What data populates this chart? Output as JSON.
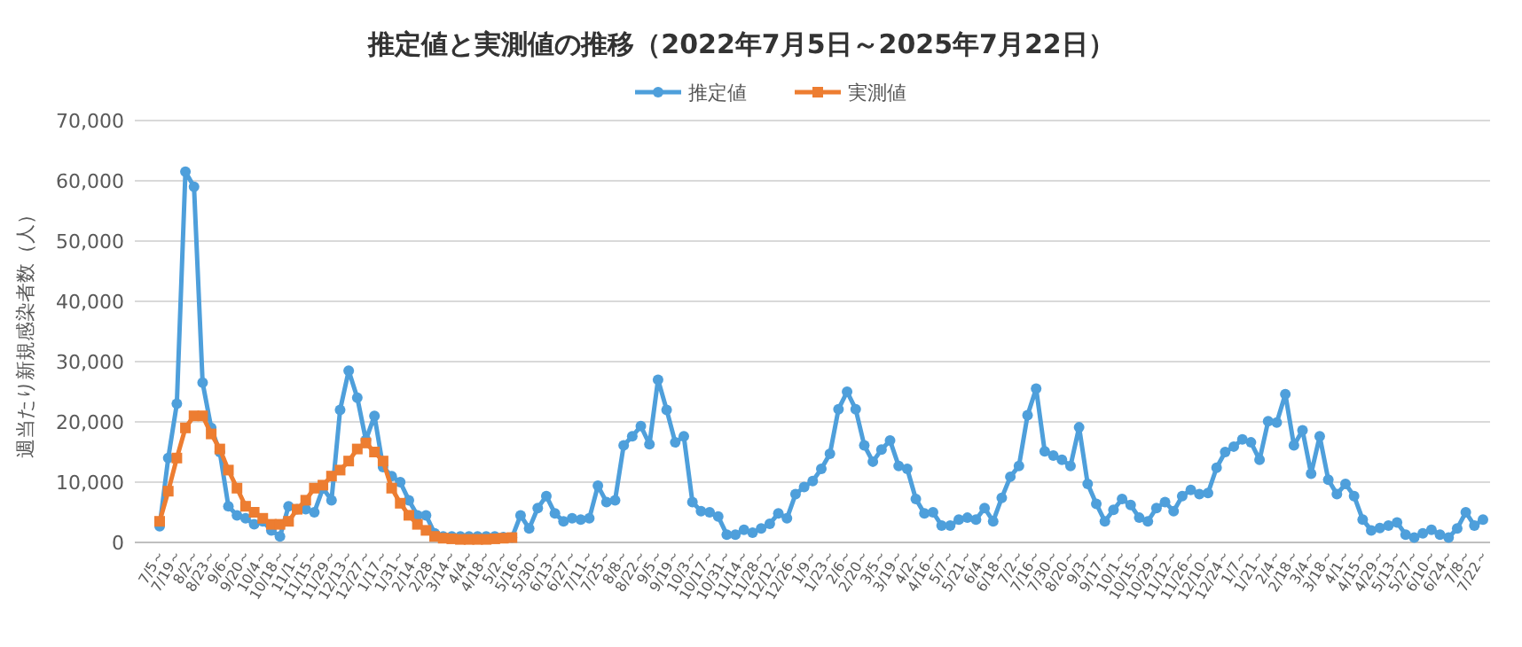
{
  "chart_data": {
    "type": "line",
    "title": "推定値と実測値の推移（2022年7月5日～2025年7月22日）",
    "ylabel": "週当たり新規感染者数（人）",
    "categories": [
      "7/5～",
      null,
      "7/19～",
      null,
      "8/2～",
      null,
      "8/23～",
      null,
      "9/6～",
      null,
      "9/20～",
      null,
      "10/4～",
      null,
      "10/18～",
      null,
      "11/1～",
      null,
      "11/15～",
      null,
      "11/29～",
      null,
      "12/13～",
      null,
      "12/27～",
      null,
      "1/17～",
      null,
      "1/31～",
      null,
      "2/14～",
      null,
      "2/28～",
      null,
      "3/14～",
      null,
      "4/4～",
      null,
      "4/18～",
      null,
      "5/2～",
      null,
      "5/16～",
      null,
      "5/30～",
      null,
      "6/13～",
      null,
      "6/27～",
      null,
      "7/11～",
      null,
      "7/25～",
      null,
      "8/8～",
      null,
      "8/22～",
      null,
      "9/5～",
      null,
      "9/19～",
      null,
      "10/3～",
      null,
      "10/17～",
      null,
      "10/31～",
      null,
      "11/14～",
      null,
      "11/28～",
      null,
      "12/12～",
      null,
      "12/26～",
      null,
      "1/9～",
      null,
      "1/23～",
      null,
      "2/6～",
      null,
      "2/20～",
      null,
      "3/5～",
      null,
      "3/19～",
      null,
      "4/2～",
      null,
      "4/16～",
      null,
      "5/7～",
      null,
      "5/21～",
      null,
      "6/4～",
      null,
      "6/18～",
      null,
      "7/2～",
      null,
      "7/16～",
      null,
      "7/30～",
      null,
      "8/20～",
      null,
      "9/3～",
      null,
      "9/17～",
      null,
      "10/1～",
      null,
      "10/15～",
      null,
      "10/29～",
      null,
      "11/12～",
      null,
      "11/26～",
      null,
      "12/10～",
      null,
      "12/24～",
      null,
      "1/7～",
      null,
      "1/21～",
      null,
      "2/4～",
      null,
      "2/18～",
      null,
      "3/4～",
      null,
      "3/18～",
      null,
      "4/1～",
      null,
      "4/15～",
      null,
      "4/29～",
      null,
      "5/13～",
      null,
      "5/27～",
      null,
      "6/10～",
      null,
      "6/24～",
      null,
      "7/8～",
      null,
      "7/22～"
    ],
    "series": [
      {
        "name": "推定値",
        "color": "#4e9fdb",
        "marker": "circle",
        "values": [
          2700,
          14000,
          23000,
          61500,
          59000,
          26500,
          19000,
          15000,
          6000,
          4500,
          4000,
          3000,
          3500,
          2000,
          1000,
          6000,
          5500,
          5500,
          5000,
          9000,
          7000,
          22000,
          28500,
          24000,
          17000,
          21000,
          12500,
          11000,
          10000,
          7000,
          4500,
          4500,
          1500,
          1000,
          1000,
          1000,
          1000,
          1000,
          1000,
          1000,
          900,
          800,
          4500,
          2300,
          5700,
          7700,
          4800,
          3500,
          4000,
          3800,
          4000,
          9400,
          6700,
          7000,
          16100,
          17600,
          19300,
          16300,
          27000,
          22000,
          16600,
          17600,
          6700,
          5200,
          5000,
          4300,
          1300,
          1300,
          2100,
          1600,
          2300,
          3100,
          4800,
          4000,
          8000,
          9200,
          10200,
          12200,
          14700,
          22100,
          25000,
          22100,
          16100,
          13400,
          15400,
          16900,
          12700,
          12200,
          7200,
          4800,
          5000,
          2800,
          2800,
          3800,
          4100,
          3800,
          5700,
          3500,
          7400,
          10900,
          12700,
          21100,
          25500,
          15100,
          14400,
          13700,
          12700,
          19100,
          9700,
          6400,
          3500,
          5400,
          7200,
          6200,
          4100,
          3500,
          5700,
          6700,
          5200,
          7700,
          8700,
          8000,
          8200,
          12400,
          15000,
          15900,
          17100,
          16600,
          13700,
          20100,
          19900,
          24600,
          16100,
          18600,
          11400,
          17600,
          10400,
          8000,
          9700,
          7700,
          3800,
          2000,
          2400,
          2800,
          3300,
          1300,
          800,
          1500,
          2100,
          1300,
          800,
          2300,
          5000,
          2800,
          3800
        ]
      },
      {
        "name": "実測値",
        "color": "#ed7d31",
        "marker": "square",
        "values": [
          3500,
          8500,
          14000,
          19000,
          21000,
          21000,
          18000,
          15500,
          12000,
          9000,
          6000,
          5000,
          4000,
          3000,
          3000,
          3500,
          5500,
          7000,
          9000,
          9500,
          11000,
          12000,
          13500,
          15500,
          16500,
          15000,
          13500,
          9000,
          6500,
          4500,
          3000,
          2000,
          1000,
          700,
          600,
          500,
          500,
          500,
          500,
          600,
          700,
          800,
          null,
          null,
          null,
          null,
          null,
          null,
          null,
          null,
          null,
          null,
          null,
          null,
          null,
          null,
          null,
          null,
          null,
          null,
          null,
          null,
          null,
          null,
          null,
          null,
          null,
          null,
          null,
          null,
          null,
          null,
          null,
          null,
          null,
          null,
          null,
          null,
          null,
          null,
          null,
          null,
          null,
          null,
          null,
          null,
          null,
          null,
          null,
          null,
          null,
          null,
          null,
          null,
          null,
          null,
          null,
          null,
          null,
          null,
          null,
          null,
          null,
          null,
          null,
          null,
          null,
          null,
          null,
          null,
          null,
          null,
          null,
          null,
          null,
          null,
          null,
          null,
          null,
          null,
          null,
          null,
          null,
          null,
          null,
          null,
          null,
          null,
          null,
          null,
          null,
          null,
          null,
          null,
          null,
          null,
          null,
          null,
          null,
          null,
          null,
          null,
          null,
          null,
          null,
          null,
          null,
          null,
          null,
          null,
          null,
          null,
          null,
          null,
          null
        ]
      }
    ],
    "ylim": [
      0,
      70000
    ],
    "yticks": [
      0,
      {
        "value": 10000,
        "label": "10,000"
      },
      {
        "value": 20000,
        "label": "20,000"
      },
      {
        "value": 30000,
        "label": "30,000"
      },
      {
        "value": 40000,
        "label": "40,000"
      },
      {
        "value": 50000,
        "label": "50,000"
      },
      {
        "value": 60000,
        "label": "60,000"
      },
      {
        "value": 70000,
        "label": "70,000"
      }
    ],
    "grid": "y",
    "legend": "top"
  }
}
